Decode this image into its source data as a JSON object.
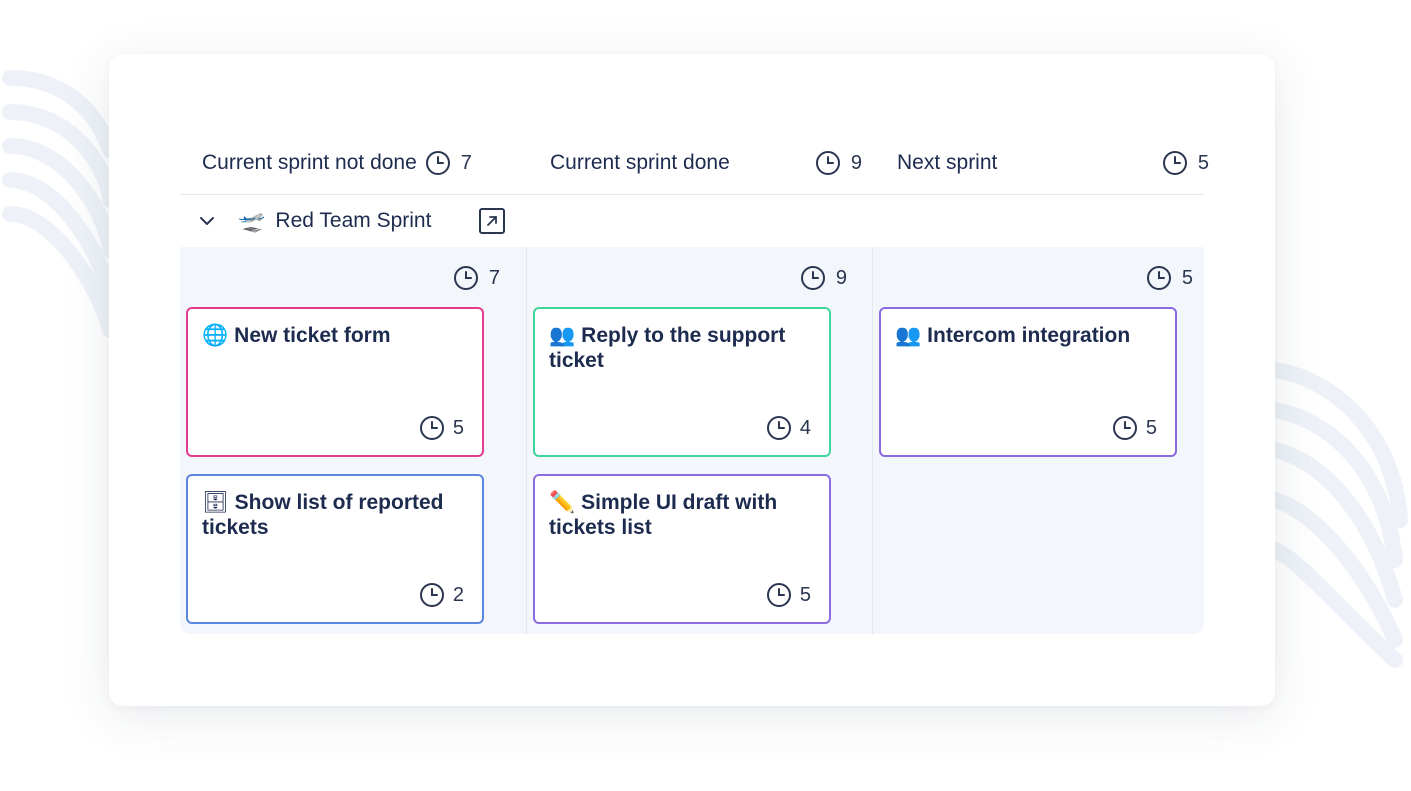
{
  "columns": [
    {
      "title": "Current sprint not done",
      "estimate": "7"
    },
    {
      "title": "Current sprint done",
      "estimate": "9"
    },
    {
      "title": "Next sprint",
      "estimate": "5"
    }
  ],
  "group": {
    "icon": "rocket-icon",
    "emoji": "🛫",
    "title": "Red Team Sprint"
  },
  "board": {
    "col_estimates": [
      "7",
      "9",
      "5"
    ],
    "cards": [
      {
        "col": 0,
        "row": 0,
        "emoji": "🌐",
        "icon": "globe-icon",
        "title": "New ticket form",
        "estimate": "5",
        "color": "#e23c8f"
      },
      {
        "col": 0,
        "row": 1,
        "emoji": "🗄",
        "icon": "filing-cabinet-icon",
        "title": "Show list of reported tickets",
        "estimate": "2",
        "color": "#5a86e0"
      },
      {
        "col": 1,
        "row": 0,
        "emoji": "👥",
        "icon": "people-icon",
        "title": "Reply to the support ticket",
        "estimate": "4",
        "color": "#3fd69b"
      },
      {
        "col": 1,
        "row": 1,
        "emoji": "✏️",
        "icon": "pencil-icon",
        "title": "Simple UI draft with tickets list",
        "estimate": "5",
        "color": "#8a6be0"
      },
      {
        "col": 2,
        "row": 0,
        "emoji": "👥",
        "icon": "people-icon",
        "title": "Intercom integration",
        "estimate": "5",
        "color": "#8a6be0"
      }
    ]
  }
}
